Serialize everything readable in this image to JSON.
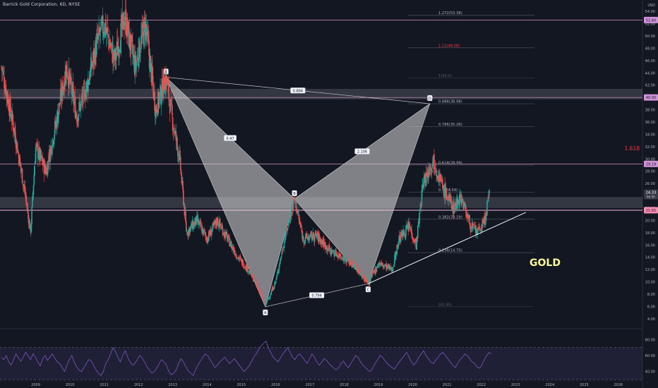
{
  "header": {
    "title": "Barrick Gold Corporation, 6D, NYSE"
  },
  "chart_data": {
    "type": "candlestick",
    "symbol": "Barrick Gold Corporation",
    "timeframe": "6D",
    "exchange": "NYSE",
    "x_tick_labels": [
      "2009",
      "2010",
      "2011",
      "2012",
      "2013",
      "2014",
      "2015",
      "2016",
      "2017",
      "2018",
      "2019",
      "2020",
      "2021",
      "2022",
      "2023",
      "2024",
      "2025",
      "2026"
    ],
    "y_axis_unit": "USD",
    "y_tick_labels": [
      "54.00",
      "52.00",
      "50.00",
      "48.00",
      "46.00",
      "44.00",
      "42.00",
      "40.00",
      "38.00",
      "36.00",
      "34.00",
      "32.00",
      "30.00",
      "28.00",
      "26.00",
      "24.00",
      "22.00",
      "20.00",
      "18.00",
      "16.00",
      "14.00",
      "12.00",
      "10.00",
      "8.00",
      "6.00",
      "4.00"
    ],
    "ylim": [
      2.6,
      55.4
    ],
    "price_path": [
      {
        "x": 2008.0,
        "y": 45
      },
      {
        "x": 2008.4,
        "y": 34
      },
      {
        "x": 2008.7,
        "y": 24
      },
      {
        "x": 2008.85,
        "y": 18
      },
      {
        "x": 2009.0,
        "y": 32
      },
      {
        "x": 2009.3,
        "y": 28
      },
      {
        "x": 2009.6,
        "y": 36
      },
      {
        "x": 2009.9,
        "y": 45
      },
      {
        "x": 2010.2,
        "y": 37
      },
      {
        "x": 2010.5,
        "y": 42
      },
      {
        "x": 2010.8,
        "y": 49
      },
      {
        "x": 2011.0,
        "y": 52
      },
      {
        "x": 2011.3,
        "y": 46
      },
      {
        "x": 2011.6,
        "y": 53
      },
      {
        "x": 2011.9,
        "y": 45
      },
      {
        "x": 2012.2,
        "y": 52
      },
      {
        "x": 2012.5,
        "y": 38
      },
      {
        "x": 2012.8,
        "y": 43.3
      },
      {
        "x": 2013.0,
        "y": 36
      },
      {
        "x": 2013.2,
        "y": 30
      },
      {
        "x": 2013.4,
        "y": 18
      },
      {
        "x": 2013.7,
        "y": 20
      },
      {
        "x": 2014.0,
        "y": 17
      },
      {
        "x": 2014.3,
        "y": 20
      },
      {
        "x": 2014.6,
        "y": 17
      },
      {
        "x": 2014.9,
        "y": 14
      },
      {
        "x": 2015.2,
        "y": 12
      },
      {
        "x": 2015.5,
        "y": 9
      },
      {
        "x": 2015.7,
        "y": 6.2
      },
      {
        "x": 2016.0,
        "y": 10
      },
      {
        "x": 2016.3,
        "y": 18
      },
      {
        "x": 2016.55,
        "y": 23.5
      },
      {
        "x": 2016.8,
        "y": 17
      },
      {
        "x": 2017.2,
        "y": 17.5
      },
      {
        "x": 2017.6,
        "y": 15
      },
      {
        "x": 2018.0,
        "y": 14
      },
      {
        "x": 2018.4,
        "y": 12
      },
      {
        "x": 2018.7,
        "y": 9.7
      },
      {
        "x": 2019.0,
        "y": 13
      },
      {
        "x": 2019.4,
        "y": 12
      },
      {
        "x": 2019.6,
        "y": 17
      },
      {
        "x": 2019.9,
        "y": 19
      },
      {
        "x": 2020.1,
        "y": 16
      },
      {
        "x": 2020.3,
        "y": 26
      },
      {
        "x": 2020.6,
        "y": 30
      },
      {
        "x": 2020.9,
        "y": 25
      },
      {
        "x": 2021.2,
        "y": 22
      },
      {
        "x": 2021.4,
        "y": 24
      },
      {
        "x": 2021.7,
        "y": 19
      },
      {
        "x": 2021.9,
        "y": 18
      },
      {
        "x": 2022.1,
        "y": 20
      },
      {
        "x": 2022.25,
        "y": 24.5
      }
    ],
    "harmonic_pattern": {
      "points": [
        {
          "label": "X",
          "x": 2012.8,
          "y": 43.3
        },
        {
          "label": "A",
          "x": 2015.7,
          "y": 5.95
        },
        {
          "label": "B",
          "x": 2016.55,
          "y": 23.5
        },
        {
          "label": "C",
          "x": 2018.7,
          "y": 9.7
        },
        {
          "label": "D",
          "x": 2020.5,
          "y": 38.98
        }
      ],
      "ratios": [
        {
          "text": "0.47",
          "between": "XB"
        },
        {
          "text": "2.106",
          "between": "BD"
        },
        {
          "text": "0.794",
          "between": "AC"
        },
        {
          "text": "0.884",
          "between": "XD"
        }
      ]
    },
    "fib_levels": [
      {
        "label": "1.272(53.38)",
        "value": 53.38
      },
      {
        "label": "1.13(48.08)",
        "value": 48.08,
        "color": "#f23645"
      },
      {
        "label": "1(43.2)",
        "value": 43.2,
        "faded": true
      },
      {
        "label": "0.886(38.98)",
        "value": 38.98
      },
      {
        "label": "0.786(35.26)",
        "value": 35.26
      },
      {
        "label": "0.618(28.99)",
        "value": 28.99
      },
      {
        "label": "0.5(24.59)",
        "value": 24.59
      },
      {
        "label": "0.382(20.19)",
        "value": 20.19
      },
      {
        "label": "0.236(14.75)",
        "value": 14.75
      },
      {
        "label": "0(5.95)",
        "value": 5.95,
        "faded": true
      }
    ],
    "horizontal_levels": [
      {
        "value": 52.6,
        "label": "52.60"
      },
      {
        "value": 40.0,
        "label": "40.00"
      },
      {
        "value": 29.19,
        "label": "29.19"
      },
      {
        "value": 21.65,
        "label": "21.65"
      }
    ],
    "zones": [
      {
        "from": 39.7,
        "to": 41.4
      },
      {
        "from": 22.0,
        "to": 23.8
      }
    ],
    "trendline": {
      "from": {
        "x": 2018.7,
        "y": 9.7
      },
      "to": {
        "x": 2023.3,
        "y": 21.3
      }
    },
    "annotations": [
      {
        "text": "1.618",
        "color": "#f23645"
      },
      {
        "text": "GOLD",
        "color": "#fff59d"
      }
    ],
    "current_price": {
      "value": "24.33",
      "countdown": "6d 5h"
    },
    "rsi": {
      "ylim": [
        30,
        90
      ],
      "ticks": [
        "80.00",
        "60.00",
        "40.00"
      ],
      "band": [
        30,
        70
      ],
      "values": [
        58,
        55,
        60,
        52,
        48,
        55,
        62,
        57,
        53,
        58,
        64,
        60,
        55,
        62,
        58,
        52,
        47,
        56,
        60,
        54,
        58,
        62,
        57,
        52,
        50,
        45,
        40,
        48,
        55,
        60,
        52,
        46,
        42,
        40,
        45,
        50,
        55,
        53,
        48,
        42,
        38,
        35,
        40,
        50,
        55,
        62,
        70,
        65,
        58,
        52,
        60,
        66,
        58,
        52,
        48,
        50,
        55,
        60,
        57,
        52,
        46,
        42,
        38,
        40,
        44,
        50,
        55,
        52,
        48,
        40,
        36,
        38,
        42,
        50,
        56,
        52,
        46,
        41,
        38,
        35,
        42,
        48,
        53,
        58,
        62,
        60,
        55,
        50,
        45,
        48,
        52,
        55,
        58,
        54,
        50,
        53,
        56,
        52,
        48,
        44,
        40,
        43,
        47,
        52,
        58,
        62,
        68,
        72,
        75,
        78,
        70,
        64,
        58,
        55,
        52,
        57,
        62,
        66,
        70,
        64,
        58,
        55,
        60,
        62,
        58,
        54,
        50,
        56,
        62,
        58,
        52,
        48,
        52,
        56,
        54,
        50,
        47,
        44,
        42,
        45,
        50,
        53,
        48,
        45,
        50,
        55,
        60,
        58,
        52,
        48,
        45,
        42,
        40,
        44,
        50,
        55,
        60,
        58,
        54,
        50,
        47,
        45,
        43,
        48,
        52,
        56,
        60,
        64,
        58,
        52,
        48,
        52,
        58,
        62,
        66,
        60,
        56,
        52,
        50,
        54,
        58,
        62,
        64,
        60,
        56,
        52,
        48,
        45,
        50,
        55,
        58,
        62,
        60,
        56,
        52,
        50,
        46,
        44,
        48,
        55,
        60,
        64,
        62
      ]
    }
  }
}
